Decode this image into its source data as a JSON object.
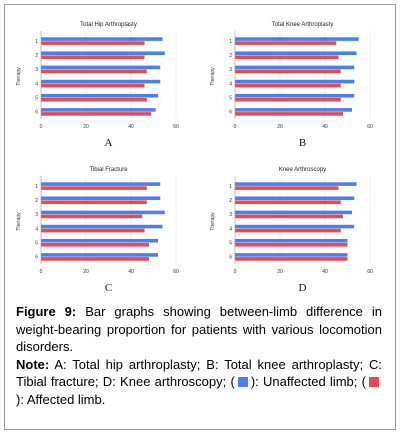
{
  "colors": {
    "unaffected": "#4a7ff0",
    "affected": "#ea4a4a"
  },
  "chart_data": [
    {
      "type": "bar",
      "orientation": "horizontal",
      "title": "Total Hip Arthroplasty",
      "panel_label": "A",
      "ylabel": "Therapy",
      "categories": [
        "1",
        "2",
        "3",
        "4",
        "5",
        "6"
      ],
      "xlim": [
        0,
        60
      ],
      "xticks": [
        "0",
        "20",
        "40",
        "60"
      ],
      "series": [
        {
          "values": [
            54,
            55,
            53,
            53,
            52,
            51
          ]
        },
        {
          "values": [
            46,
            46,
            47,
            46,
            47,
            49
          ]
        }
      ]
    },
    {
      "type": "bar",
      "orientation": "horizontal",
      "title": "Total Knee Arthroplasty",
      "panel_label": "B",
      "ylabel": "Therapy",
      "categories": [
        "1",
        "2",
        "3",
        "4",
        "5",
        "6"
      ],
      "xlim": [
        0,
        60
      ],
      "xticks": [
        "0",
        "20",
        "40",
        "60"
      ],
      "series": [
        {
          "values": [
            55,
            54,
            53,
            53,
            53,
            52
          ]
        },
        {
          "values": [
            45,
            46,
            47,
            47,
            47,
            48
          ]
        }
      ]
    },
    {
      "type": "bar",
      "orientation": "horizontal",
      "title": "Tibial Fracture",
      "panel_label": "C",
      "ylabel": "Therapy",
      "categories": [
        "1",
        "2",
        "3",
        "4",
        "5",
        "6"
      ],
      "xlim": [
        0,
        60
      ],
      "xticks": [
        "0",
        "20",
        "40",
        "60"
      ],
      "series": [
        {
          "values": [
            53,
            53,
            55,
            54,
            52,
            52
          ]
        },
        {
          "values": [
            47,
            47,
            45,
            46,
            48,
            48
          ]
        }
      ]
    },
    {
      "type": "bar",
      "orientation": "horizontal",
      "title": "Knee Arthroscopy",
      "panel_label": "D",
      "ylabel": "Therapy",
      "categories": [
        "1",
        "2",
        "3",
        "4",
        "5",
        "6"
      ],
      "xlim": [
        0,
        60
      ],
      "xticks": [
        "0",
        "20",
        "40",
        "60"
      ],
      "series": [
        {
          "values": [
            54,
            53,
            52,
            53,
            50,
            50
          ]
        },
        {
          "values": [
            46,
            47,
            48,
            47,
            50,
            50
          ]
        }
      ]
    }
  ],
  "caption": {
    "figure_label": "Figure 9:",
    "figure_text": " Bar graphs showing between-limb difference in weight-bearing proportion for patients with various locomotion disorders.",
    "note_label": "Note:",
    "note_text": " A: Total hip arthroplasty; B: Total knee arthroplasty; C: Tibial fracture; D: Knee arthroscopy;",
    "open_paren_1": "(",
    "legend_unaffected": "): Unaffected limb; (",
    "legend_affected": "): Affected limb."
  }
}
